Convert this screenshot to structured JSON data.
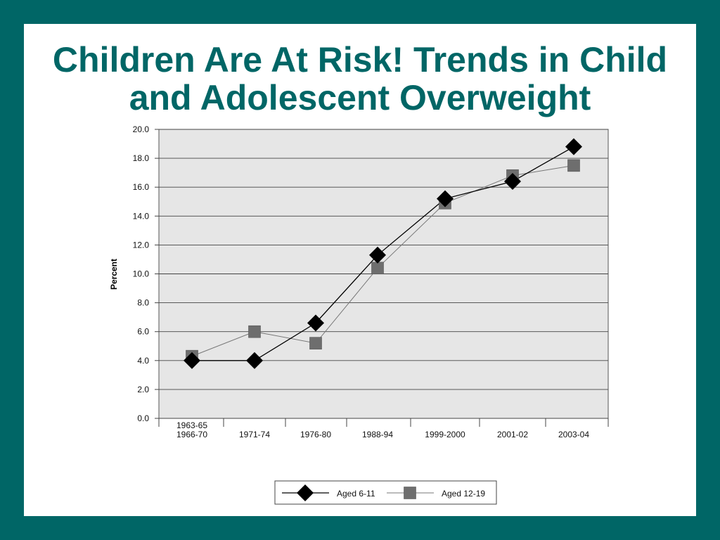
{
  "slide": {
    "title_line1": "Children Are At Risk! Trends in Child",
    "title_line2": "and Adolescent Overweight"
  },
  "colors": {
    "background": "#006666",
    "title": "#006666",
    "plot_area": "#e6e6e6",
    "series_6_11": "#000000",
    "series_12_19": "#6e6e6e"
  },
  "chart_data": {
    "type": "line",
    "title": "Children Are At Risk! Trends in Child and Adolescent Overweight",
    "xlabel": "",
    "ylabel": "Percent",
    "categories": [
      "1963-65\n1966-70",
      "1971-74",
      "1976-80",
      "1988-94",
      "1999-2000",
      "2001-02",
      "2003-04"
    ],
    "ylim": [
      0,
      20
    ],
    "yticks": [
      "0.0",
      "2.0",
      "4.0",
      "6.0",
      "8.0",
      "10.0",
      "12.0",
      "14.0",
      "16.0",
      "18.0",
      "20.0"
    ],
    "grid": true,
    "legend_position": "bottom",
    "series": [
      {
        "name": "Aged 6-11",
        "marker": "diamond",
        "values": [
          4.0,
          4.0,
          6.6,
          11.3,
          15.2,
          16.4,
          18.8
        ]
      },
      {
        "name": "Aged 12-19",
        "marker": "square",
        "values": [
          4.3,
          6.0,
          5.2,
          10.4,
          14.9,
          16.8,
          17.5
        ]
      }
    ]
  }
}
